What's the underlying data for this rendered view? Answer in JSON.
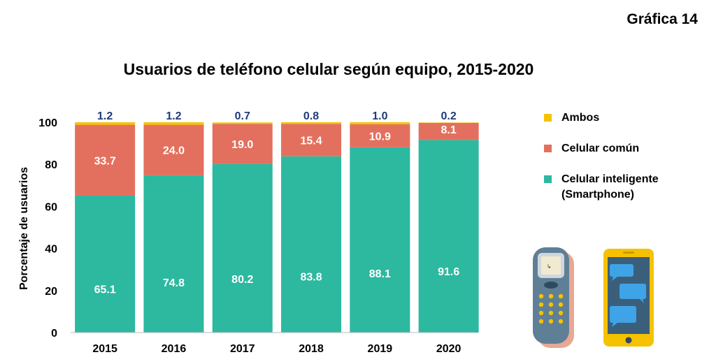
{
  "header": {
    "grafica": "Gráfica 14"
  },
  "chart_data": {
    "type": "bar",
    "stacked": true,
    "title": "Usuarios de teléfono celular según equipo, 2015-2020",
    "ylabel": "Porcentaje de usuarios",
    "xlabel": "",
    "ylim": [
      0,
      100
    ],
    "yticks": [
      0,
      20,
      40,
      60,
      80,
      100
    ],
    "categories": [
      "2015",
      "2016",
      "2017",
      "2018",
      "2019",
      "2020"
    ],
    "legend_position": "right",
    "series": [
      {
        "name": "Celular inteligente (Smartphone)",
        "color": "#2db8a0",
        "label_color": "#ffffff",
        "values": [
          65.1,
          74.8,
          80.2,
          83.8,
          88.1,
          91.6
        ]
      },
      {
        "name": "Celular común",
        "color": "#e3705e",
        "label_color": "#ffffff",
        "values": [
          33.7,
          24.0,
          19.0,
          15.4,
          10.9,
          8.1
        ]
      },
      {
        "name": "Ambos",
        "color": "#f5c200",
        "label_color": "#1f3b7a",
        "values": [
          1.2,
          1.2,
          0.7,
          0.8,
          1.0,
          0.2
        ]
      }
    ]
  },
  "legend": {
    "items": [
      {
        "label": "Ambos",
        "color": "#f5c200"
      },
      {
        "label": "Celular común",
        "color": "#e3705e"
      },
      {
        "label_line1": "Celular inteligente",
        "label_line2": "(Smartphone)",
        "color": "#2db8a0"
      }
    ]
  },
  "icons": [
    "feature-phone-icon",
    "smartphone-chat-icon"
  ]
}
